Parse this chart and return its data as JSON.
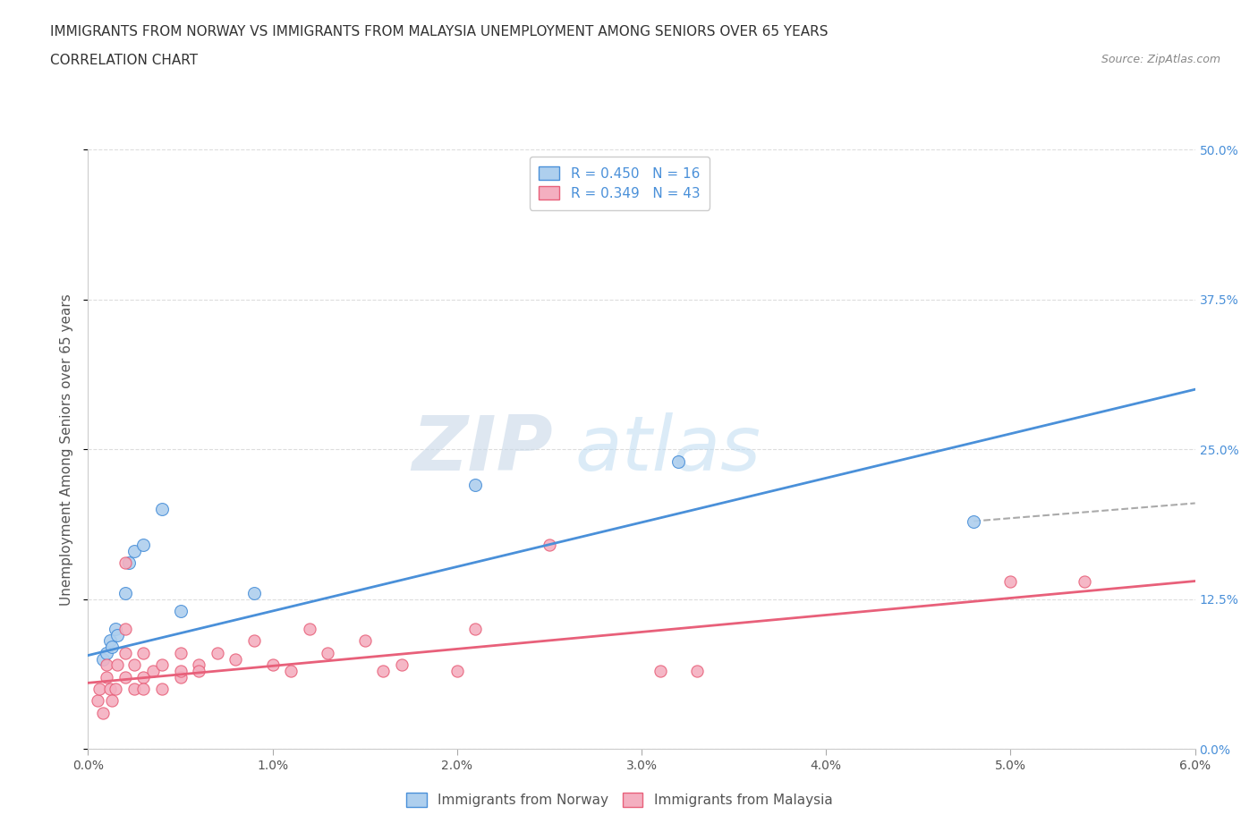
{
  "title": "IMMIGRANTS FROM NORWAY VS IMMIGRANTS FROM MALAYSIA UNEMPLOYMENT AMONG SENIORS OVER 65 YEARS",
  "subtitle": "CORRELATION CHART",
  "source": "Source: ZipAtlas.com",
  "ylabel": "Unemployment Among Seniors over 65 years",
  "norway_R": 0.45,
  "norway_N": 16,
  "malaysia_R": 0.349,
  "malaysia_N": 43,
  "norway_color": "#aecfee",
  "malaysia_color": "#f4afc0",
  "norway_line_color": "#4a90d9",
  "malaysia_line_color": "#e8607a",
  "norway_scatter": [
    [
      0.0008,
      0.075
    ],
    [
      0.001,
      0.08
    ],
    [
      0.0012,
      0.09
    ],
    [
      0.0013,
      0.085
    ],
    [
      0.0015,
      0.1
    ],
    [
      0.0016,
      0.095
    ],
    [
      0.002,
      0.13
    ],
    [
      0.0022,
      0.155
    ],
    [
      0.0025,
      0.165
    ],
    [
      0.003,
      0.17
    ],
    [
      0.004,
      0.2
    ],
    [
      0.005,
      0.115
    ],
    [
      0.009,
      0.13
    ],
    [
      0.021,
      0.22
    ],
    [
      0.032,
      0.24
    ],
    [
      0.048,
      0.19
    ]
  ],
  "malaysia_scatter": [
    [
      0.0005,
      0.04
    ],
    [
      0.0006,
      0.05
    ],
    [
      0.0008,
      0.03
    ],
    [
      0.001,
      0.06
    ],
    [
      0.001,
      0.07
    ],
    [
      0.0012,
      0.05
    ],
    [
      0.0013,
      0.04
    ],
    [
      0.0015,
      0.05
    ],
    [
      0.0016,
      0.07
    ],
    [
      0.002,
      0.06
    ],
    [
      0.002,
      0.08
    ],
    [
      0.002,
      0.1
    ],
    [
      0.002,
      0.155
    ],
    [
      0.0025,
      0.05
    ],
    [
      0.0025,
      0.07
    ],
    [
      0.003,
      0.06
    ],
    [
      0.003,
      0.05
    ],
    [
      0.003,
      0.08
    ],
    [
      0.0035,
      0.065
    ],
    [
      0.004,
      0.07
    ],
    [
      0.004,
      0.05
    ],
    [
      0.005,
      0.06
    ],
    [
      0.005,
      0.08
    ],
    [
      0.005,
      0.065
    ],
    [
      0.006,
      0.07
    ],
    [
      0.006,
      0.065
    ],
    [
      0.007,
      0.08
    ],
    [
      0.008,
      0.075
    ],
    [
      0.009,
      0.09
    ],
    [
      0.01,
      0.07
    ],
    [
      0.011,
      0.065
    ],
    [
      0.012,
      0.1
    ],
    [
      0.013,
      0.08
    ],
    [
      0.015,
      0.09
    ],
    [
      0.016,
      0.065
    ],
    [
      0.017,
      0.07
    ],
    [
      0.02,
      0.065
    ],
    [
      0.021,
      0.1
    ],
    [
      0.025,
      0.17
    ],
    [
      0.031,
      0.065
    ],
    [
      0.033,
      0.065
    ],
    [
      0.05,
      0.14
    ],
    [
      0.054,
      0.14
    ]
  ],
  "norway_trend": [
    0.0,
    0.078,
    0.06,
    0.3
  ],
  "malaysia_trend": [
    0.0,
    0.055,
    0.06,
    0.14
  ],
  "xmin": 0.0,
  "xmax": 0.06,
  "ymin": 0.0,
  "ymax": 0.5,
  "xticks": [
    0.0,
    0.01,
    0.02,
    0.03,
    0.04,
    0.05,
    0.06
  ],
  "xtick_labels": [
    "0.0%",
    "1.0%",
    "2.0%",
    "3.0%",
    "4.0%",
    "5.0%",
    "6.0%"
  ],
  "yticks": [
    0.0,
    0.125,
    0.25,
    0.375,
    0.5
  ],
  "ytick_labels": [
    "0.0%",
    "12.5%",
    "25.0%",
    "37.5%",
    "50.0%"
  ],
  "dashed_line_color": "#aaaaaa",
  "dashed_line": [
    0.048,
    0.19,
    0.06,
    0.205
  ],
  "watermark_zip": "ZIP",
  "watermark_atlas": "atlas",
  "background_color": "#ffffff",
  "plot_bg_color": "#ffffff",
  "grid_color": "#dddddd",
  "title_fontsize": 11,
  "subtitle_fontsize": 11,
  "axis_label_fontsize": 11,
  "tick_fontsize": 10,
  "legend_norway": "Immigrants from Norway",
  "legend_malaysia": "Immigrants from Malaysia"
}
